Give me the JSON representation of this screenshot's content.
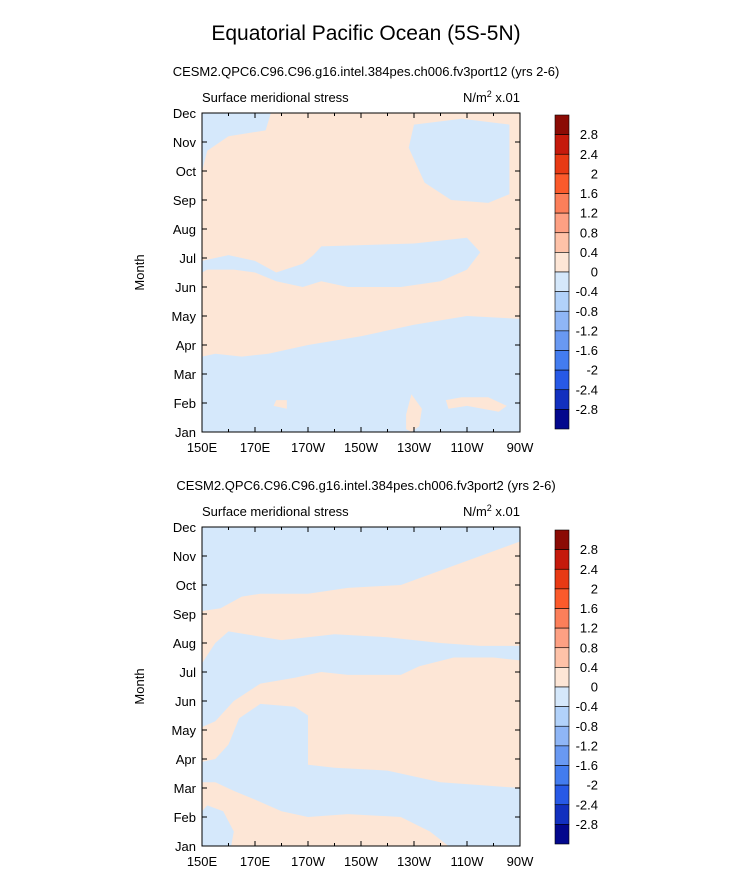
{
  "title": "Equatorial Pacific Ocean (5S-5N)",
  "colors": {
    "positive": "#fde6d6",
    "negative": "#d5e8fb"
  },
  "colorbar": {
    "labels": [
      "2.8",
      "2.4",
      "2",
      "1.6",
      "1.2",
      "0.8",
      "0.4",
      "0",
      "-0.4",
      "-0.8",
      "-1.2",
      "-1.6",
      "-2",
      "-2.4",
      "-2.8"
    ],
    "colors": [
      "#8b0b05",
      "#c51a0c",
      "#e83a14",
      "#fb5a2b",
      "#fc7f5a",
      "#fda083",
      "#fec2a8",
      "#fde6d6",
      "#d5e8fb",
      "#b2d2fa",
      "#8fb6f6",
      "#6999f2",
      "#437cef",
      "#2759e6",
      "#1230bf",
      "#03088d"
    ]
  },
  "chart_data": [
    {
      "type": "heatmap",
      "subtitle": "CESM2.QPC6.C96.C96.g16.intel.384pes.ch006.fv3port12 (yrs 2-6)",
      "left_label": "Surface meridional stress",
      "right_label": "N/m",
      "unit_power": "2",
      "unit_scale": " x.01",
      "ylabel": "Month",
      "y_ticks": [
        "Jan",
        "Feb",
        "Mar",
        "Apr",
        "May",
        "Jun",
        "Jul",
        "Aug",
        "Sep",
        "Oct",
        "Nov",
        "Dec"
      ],
      "x_ticks": [
        "150E",
        "170E",
        "170W",
        "150W",
        "130W",
        "110W",
        "90W"
      ],
      "x_range_deg": [
        150,
        270
      ],
      "y_range_month": [
        1,
        12
      ],
      "negative_regions": [
        [
          [
            150,
            1
          ],
          [
            270,
            1
          ],
          [
            270,
            4.9
          ],
          [
            250,
            5.0
          ],
          [
            230,
            4.7
          ],
          [
            210,
            4.3
          ],
          [
            190,
            4.0
          ],
          [
            175,
            3.7
          ],
          [
            165,
            3.6
          ],
          [
            155,
            3.7
          ],
          [
            150,
            3.6
          ]
        ],
        [
          [
            150,
            6.9
          ],
          [
            160,
            7.1
          ],
          [
            170,
            6.9
          ],
          [
            178,
            6.5
          ],
          [
            188,
            6.8
          ],
          [
            192,
            7.1
          ],
          [
            195,
            7.4
          ],
          [
            230,
            7.5
          ],
          [
            250,
            7.7
          ],
          [
            255,
            7.2
          ],
          [
            250,
            6.6
          ],
          [
            240,
            6.2
          ],
          [
            225,
            6.0
          ],
          [
            205,
            6.0
          ],
          [
            195,
            6.2
          ],
          [
            188,
            6.0
          ],
          [
            178,
            6.2
          ],
          [
            170,
            6.5
          ],
          [
            162,
            6.6
          ],
          [
            152,
            6.6
          ],
          [
            150,
            6.5
          ]
        ],
        [
          [
            150,
            10.0
          ],
          [
            152,
            10.7
          ],
          [
            160,
            11.2
          ],
          [
            174,
            11.4
          ],
          [
            176,
            12
          ],
          [
            150,
            12
          ]
        ],
        [
          [
            230,
            11.6
          ],
          [
            248,
            11.8
          ],
          [
            266,
            11.6
          ],
          [
            266,
            9.2
          ],
          [
            258,
            8.9
          ],
          [
            244,
            9.0
          ],
          [
            234,
            9.6
          ],
          [
            228,
            10.8
          ]
        ]
      ],
      "positive_regions": [
        [
          [
            229,
            1
          ],
          [
            232,
            1.2
          ],
          [
            233,
            1.8
          ],
          [
            229,
            2.3
          ],
          [
            227,
            1.6
          ],
          [
            227,
            1.1
          ]
        ],
        [
          [
            243,
            1.8
          ],
          [
            250,
            1.9
          ],
          [
            262,
            1.7
          ],
          [
            265,
            1.9
          ],
          [
            258,
            2.2
          ],
          [
            248,
            2.2
          ],
          [
            242,
            2.1
          ]
        ],
        [
          [
            177,
            1.9
          ],
          [
            182,
            1.8
          ],
          [
            182,
            2.1
          ],
          [
            178,
            2.1
          ]
        ]
      ]
    },
    {
      "type": "heatmap",
      "subtitle": "CESM2.QPC6.C96.C96.g16.intel.384pes.ch006.fv3port2 (yrs 2-6)",
      "left_label": "Surface meridional stress",
      "right_label": "N/m",
      "unit_power": "2",
      "unit_scale": " x.01",
      "ylabel": "Month",
      "y_ticks": [
        "Jan",
        "Feb",
        "Mar",
        "Apr",
        "May",
        "Jun",
        "Jul",
        "Aug",
        "Sep",
        "Oct",
        "Nov",
        "Dec"
      ],
      "x_ticks": [
        "150E",
        "170E",
        "170W",
        "150W",
        "130W",
        "110W",
        "90W"
      ],
      "x_range_deg": [
        150,
        270
      ],
      "y_range_month": [
        1,
        12
      ],
      "negative_regions": [
        [
          [
            150,
            9.1
          ],
          [
            150,
            12
          ],
          [
            270,
            12
          ],
          [
            270,
            11.5
          ],
          [
            255,
            11.0
          ],
          [
            240,
            10.5
          ],
          [
            225,
            10.0
          ],
          [
            205,
            9.9
          ],
          [
            190,
            9.7
          ],
          [
            172,
            9.7
          ],
          [
            165,
            9.6
          ],
          [
            157,
            9.2
          ]
        ],
        [
          [
            160,
            8.4
          ],
          [
            180,
            8.1
          ],
          [
            200,
            8.3
          ],
          [
            220,
            8.2
          ],
          [
            240,
            8.0
          ],
          [
            255,
            7.9
          ],
          [
            270,
            7.9
          ],
          [
            270,
            7.4
          ],
          [
            260,
            7.5
          ],
          [
            245,
            7.5
          ],
          [
            232,
            7.2
          ],
          [
            225,
            6.9
          ],
          [
            205,
            6.9
          ],
          [
            195,
            7.0
          ],
          [
            185,
            6.8
          ],
          [
            172,
            6.6
          ],
          [
            162,
            6.0
          ],
          [
            155,
            5.3
          ],
          [
            150,
            5.1
          ],
          [
            150,
            7.3
          ],
          [
            155,
            8.0
          ]
        ],
        [
          [
            150,
            3.9
          ],
          [
            155,
            4.0
          ],
          [
            160,
            4.5
          ],
          [
            164,
            5.4
          ],
          [
            172,
            5.9
          ],
          [
            185,
            5.8
          ],
          [
            190,
            5.5
          ],
          [
            190,
            3.8
          ],
          [
            200,
            3.7
          ],
          [
            220,
            3.6
          ],
          [
            240,
            3.2
          ],
          [
            255,
            3.1
          ],
          [
            270,
            3.0
          ],
          [
            270,
            1
          ],
          [
            243,
            1
          ],
          [
            236,
            1.5
          ],
          [
            225,
            2.0
          ],
          [
            205,
            2.1
          ],
          [
            190,
            2.0
          ],
          [
            180,
            2.2
          ],
          [
            170,
            2.6
          ],
          [
            162,
            2.9
          ],
          [
            155,
            3.2
          ],
          [
            150,
            3.2
          ]
        ],
        [
          [
            150,
            1
          ],
          [
            161,
            1
          ],
          [
            162,
            1.5
          ],
          [
            158,
            2.2
          ],
          [
            152,
            2.4
          ],
          [
            150,
            2.2
          ]
        ]
      ],
      "positive_regions": [
        [
          [
            179,
            1
          ],
          [
            184,
            1.2
          ],
          [
            186,
            1.6
          ],
          [
            182,
            2.0
          ],
          [
            178,
            1.5
          ]
        ],
        [
          [
            206,
            3.9
          ],
          [
            209,
            3.9
          ],
          [
            209,
            4.7
          ],
          [
            208,
            5.1
          ],
          [
            206,
            4.5
          ]
        ]
      ]
    }
  ]
}
